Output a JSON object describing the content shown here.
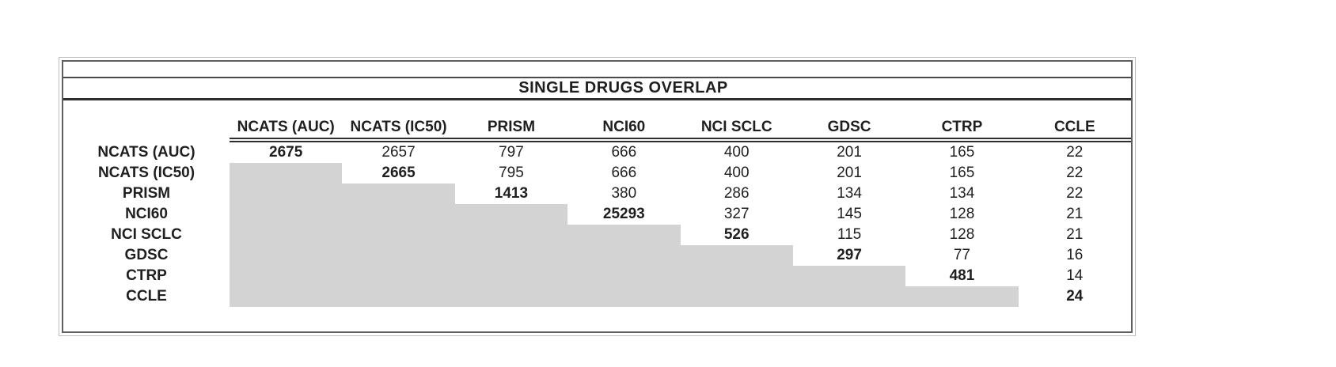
{
  "title": "SINGLE DRUGS OVERLAP",
  "colors": {
    "shade_gray": "#d3d3d3",
    "border_gray": "#5f5f5f",
    "text": "#1f1f1f"
  },
  "table": {
    "columns": [
      "NCATS (AUC)",
      "NCATS (IC50)",
      "PRISM",
      "NCI60",
      "NCI SCLC",
      "GDSC",
      "CTRP",
      "CCLE"
    ],
    "rows": [
      {
        "label": "NCATS (AUC)",
        "values": [
          "2675",
          "2657",
          "797",
          "666",
          "400",
          "201",
          "165",
          "22"
        ]
      },
      {
        "label": "NCATS (IC50)",
        "values": [
          null,
          "2665",
          "795",
          "666",
          "400",
          "201",
          "165",
          "22"
        ]
      },
      {
        "label": "PRISM",
        "values": [
          null,
          null,
          "1413",
          "380",
          "286",
          "134",
          "134",
          "22"
        ]
      },
      {
        "label": "NCI60",
        "values": [
          null,
          null,
          null,
          "25293",
          "327",
          "145",
          "128",
          "21"
        ]
      },
      {
        "label": "NCI SCLC",
        "values": [
          null,
          null,
          null,
          null,
          "526",
          "115",
          "128",
          "21"
        ]
      },
      {
        "label": "GDSC",
        "values": [
          null,
          null,
          null,
          null,
          null,
          "297",
          "77",
          "16"
        ]
      },
      {
        "label": "CTRP",
        "values": [
          null,
          null,
          null,
          null,
          null,
          null,
          "481",
          "14"
        ]
      },
      {
        "label": "CCLE",
        "values": [
          null,
          null,
          null,
          null,
          null,
          null,
          null,
          "24"
        ]
      }
    ]
  },
  "chart_data": {
    "type": "table",
    "title": "SINGLE DRUGS OVERLAP",
    "columns": [
      "NCATS (AUC)",
      "NCATS (IC50)",
      "PRISM",
      "NCI60",
      "NCI SCLC",
      "GDSC",
      "CTRP",
      "CCLE"
    ],
    "row_labels": [
      "NCATS (AUC)",
      "NCATS (IC50)",
      "PRISM",
      "NCI60",
      "NCI SCLC",
      "GDSC",
      "CTRP",
      "CCLE"
    ],
    "matrix": [
      [
        2675,
        2657,
        797,
        666,
        400,
        201,
        165,
        22
      ],
      [
        null,
        2665,
        795,
        666,
        400,
        201,
        165,
        22
      ],
      [
        null,
        null,
        1413,
        380,
        286,
        134,
        134,
        22
      ],
      [
        null,
        null,
        null,
        25293,
        327,
        145,
        128,
        21
      ],
      [
        null,
        null,
        null,
        null,
        526,
        115,
        128,
        21
      ],
      [
        null,
        null,
        null,
        null,
        null,
        297,
        77,
        16
      ],
      [
        null,
        null,
        null,
        null,
        null,
        null,
        481,
        14
      ],
      [
        null,
        null,
        null,
        null,
        null,
        null,
        null,
        24
      ]
    ],
    "diagonal_bold": true,
    "lower_triangle_shaded": true
  }
}
